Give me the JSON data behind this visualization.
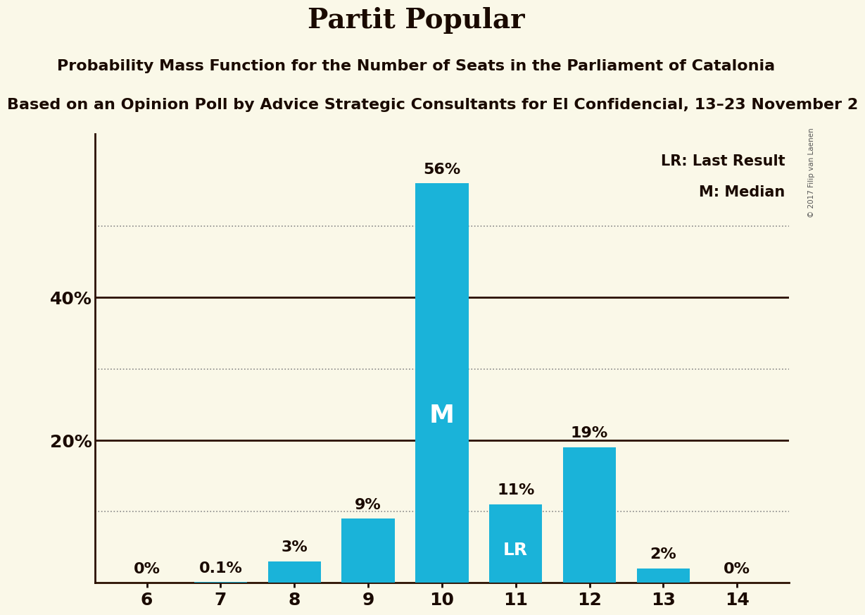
{
  "title": "Partit Popular",
  "subtitle1": "Probability Mass Function for the Number of Seats in the Parliament of Catalonia",
  "subtitle2": "Based on an Opinion Poll by Advice Strategic Consultants for El Confidencial, 13–23 November 2",
  "subtitle2_display": "ed on an Opinion Poll by Advice Strategic Consultants for El Confidencial, 13–23 November 2",
  "copyright": "© 2017 Filip van Laenen",
  "categories": [
    6,
    7,
    8,
    9,
    10,
    11,
    12,
    13,
    14
  ],
  "values": [
    0.0,
    0.1,
    3.0,
    9.0,
    56.0,
    11.0,
    19.0,
    2.0,
    0.0
  ],
  "bar_color": "#1ab3d9",
  "background_color": "#faf8e8",
  "text_color": "#1a0a00",
  "solid_line_color": "#2a1000",
  "dotted_line_color": "#888888",
  "yticks": [
    0,
    10,
    20,
    30,
    40,
    50,
    60
  ],
  "yticklabels": [
    "",
    "",
    "20%",
    "",
    "40%",
    "",
    ""
  ],
  "ylim": [
    0,
    63
  ],
  "dotted_lines": [
    10,
    30,
    50
  ],
  "solid_lines": [
    20,
    40
  ],
  "median_bar_idx": 4,
  "lr_bar_idx": 5,
  "bar_labels": [
    "0%",
    "0.1%",
    "3%",
    "9%",
    "56%",
    "11%",
    "19%",
    "2%",
    "0%"
  ],
  "legend_lr": "LR: Last Result",
  "legend_m": "M: Median",
  "title_fontsize": 28,
  "subtitle1_fontsize": 16,
  "subtitle2_fontsize": 16,
  "annotation_fontsize": 16,
  "ytick_fontsize": 18,
  "xtick_fontsize": 18,
  "legend_fontsize": 15,
  "bar_width": 0.72
}
